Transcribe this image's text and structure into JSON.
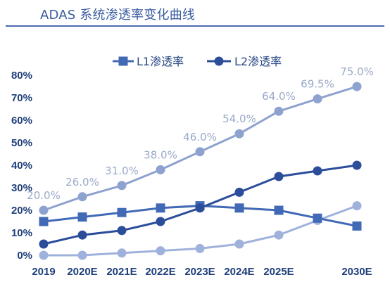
{
  "header": {
    "title": "ADAS 系统渗透率变化曲线"
  },
  "colors": {
    "title": "#3a5ba0",
    "rule": "#4a6bb0",
    "tick_text": "#1f3f7a",
    "data_label": "#9aa9c8",
    "series_total": "#8ea2cf",
    "series_l1": "#4169b6",
    "series_l2": "#2c4d9a",
    "series_l3": "#9fb2dc"
  },
  "chart_data": {
    "type": "line",
    "title": "ADAS 系统渗透率变化曲线",
    "xlabel": "",
    "ylabel": "",
    "categories": [
      "2019",
      "2020E",
      "2021E",
      "2022E",
      "2023E",
      "2024E",
      "2025E",
      "",
      "2030E"
    ],
    "x_tick_labels": [
      "2019",
      "2020E",
      "2021E",
      "2022E",
      "2023E",
      "2024E",
      "2025E",
      "2030E"
    ],
    "ylim": [
      0,
      80
    ],
    "y_ticks": [
      0,
      10,
      20,
      30,
      40,
      50,
      60,
      70,
      80
    ],
    "y_tick_labels": [
      "0%",
      "10%",
      "20%",
      "30%",
      "40%",
      "50%",
      "60%",
      "70%",
      "80%"
    ],
    "grid": false,
    "legend_position": "top",
    "series": [
      {
        "key": "total",
        "values": [
          20,
          26,
          31,
          38,
          46,
          54,
          64,
          69.5,
          75
        ],
        "marker": "circle",
        "data_labels": [
          "20.0%",
          "26.0%",
          "31.0%",
          "38.0%",
          "46.0%",
          "54.0%",
          "64.0%",
          "69.5%",
          "75.0%"
        ]
      },
      {
        "key": "l1",
        "name": "L1渗透率",
        "values": [
          15,
          17,
          19,
          21,
          22,
          21,
          20,
          16.5,
          13
        ],
        "marker": "square"
      },
      {
        "key": "l2",
        "name": "L2渗透率",
        "values": [
          5,
          9,
          11,
          15,
          21,
          28,
          35,
          37.5,
          40
        ],
        "marker": "circle"
      },
      {
        "key": "l3",
        "values": [
          0,
          0,
          1,
          2,
          3,
          5,
          9,
          15.5,
          22
        ],
        "marker": "circle"
      }
    ]
  }
}
